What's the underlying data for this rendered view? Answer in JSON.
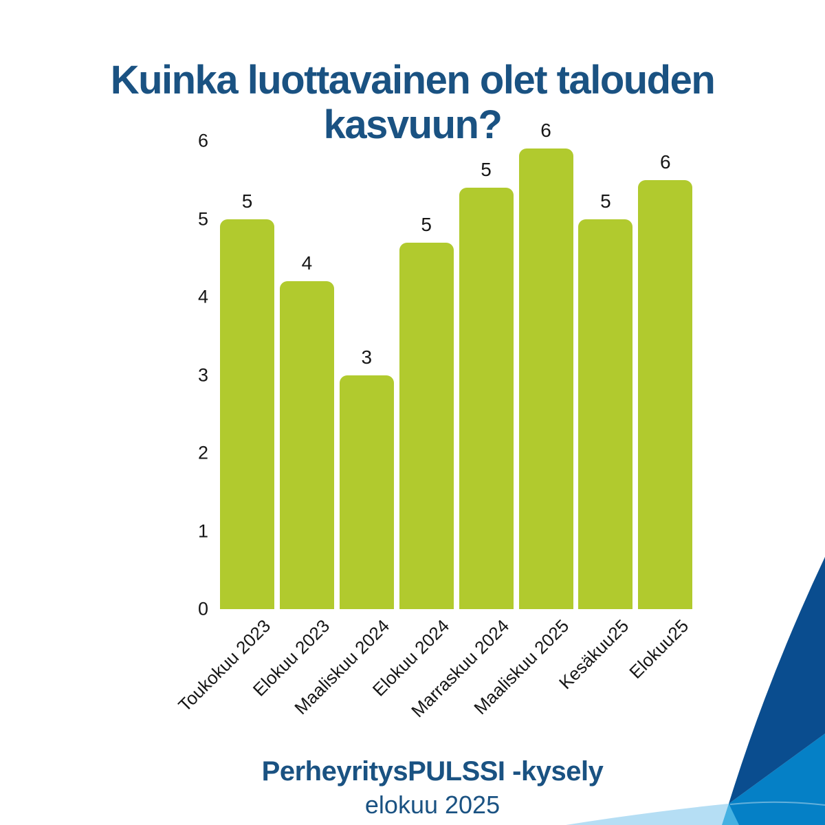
{
  "title": "Kuinka luottavainen olet talouden kasvuun?",
  "footer": {
    "survey_name": "PerheyritysPULSSI -kysely",
    "survey_date": "elokuu 2025"
  },
  "colors": {
    "background": "#ffffff",
    "title_text": "#1a5282",
    "label_text": "#161616",
    "bar_fill": "#b1ca2e",
    "corner_dark_blue": "#0a4d8f",
    "corner_medium_blue": "#0580c6",
    "corner_cyan": "#45b1e2",
    "corner_light_blue": "#b5def4"
  },
  "chart_data": {
    "type": "bar",
    "title": "Kuinka luottavainen olet talouden kasvuun?",
    "categories": [
      "Toukokuu 2023",
      "Elokuu 2023",
      "Maaliskuu 2024",
      "Elokuu 2024",
      "Marraskuu 2024",
      "Maaliskuu 2025",
      "Kesäkuu25",
      "Elokuu25"
    ],
    "values": [
      5.0,
      4.2,
      3.0,
      4.7,
      5.4,
      5.9,
      5.0,
      5.5
    ],
    "bar_labels": [
      "5",
      "4",
      "3",
      "5",
      "5",
      "6",
      "5",
      "6"
    ],
    "xlabel": "",
    "ylabel": "",
    "ylim": [
      0,
      6
    ],
    "ytick_labels": [
      "0",
      "1",
      "2",
      "3",
      "4",
      "5",
      "6"
    ],
    "grid": false,
    "legend": null,
    "bar_color": "#b1ca2e"
  }
}
